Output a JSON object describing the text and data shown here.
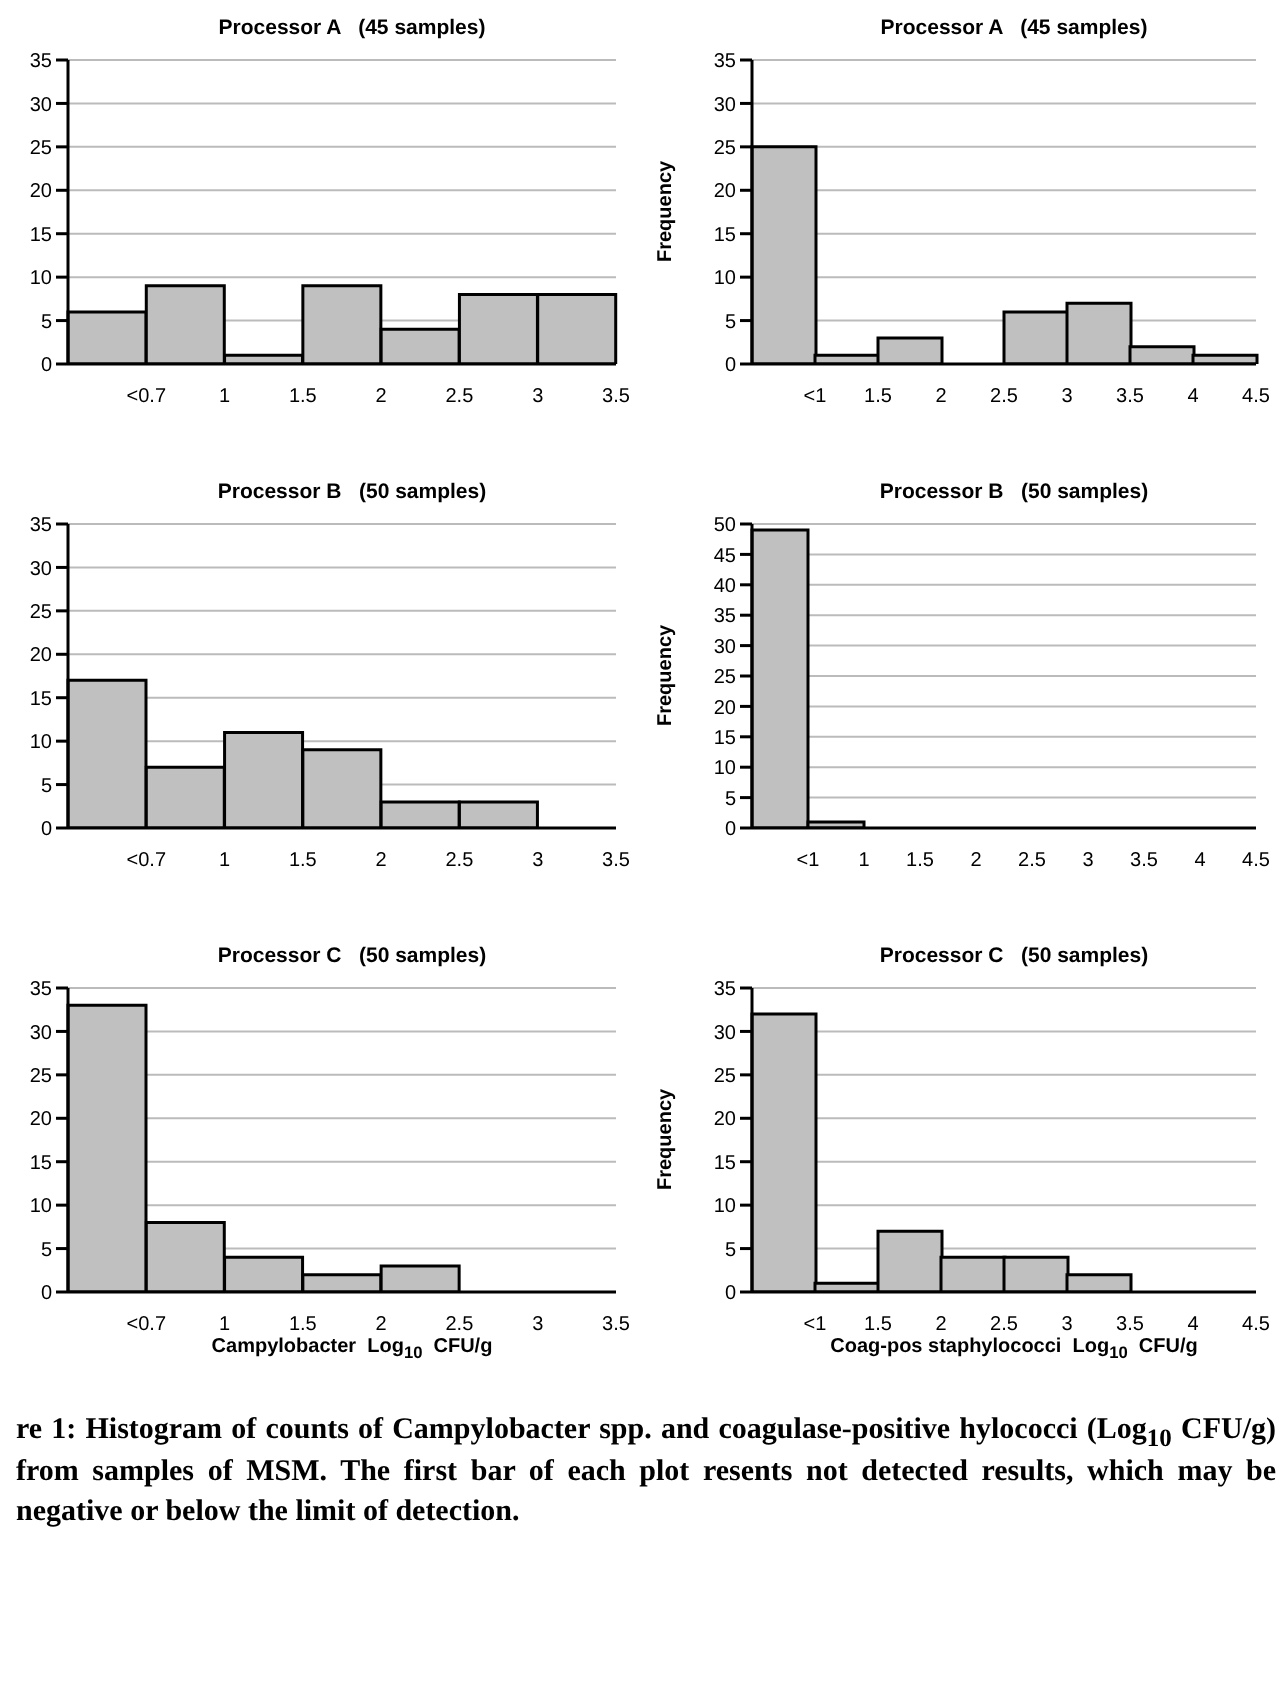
{
  "chart_data": [
    {
      "type": "bar",
      "title": "Processor A   (45 samples)",
      "categories": [
        "<0.7",
        "1",
        "1.5",
        "2",
        "2.5",
        "3",
        "3.5"
      ],
      "values": [
        6,
        9,
        1,
        9,
        4,
        8,
        8
      ],
      "color": "#c0c0c0",
      "ylim": [
        0,
        35
      ],
      "yticks": [
        0,
        5,
        10,
        15,
        20,
        25,
        30,
        35
      ],
      "grid": "y",
      "legend": false
    },
    {
      "type": "bar",
      "title": "Processor A   (45 samples)",
      "ylabel": "Frequency",
      "categories": [
        "<1",
        "1.5",
        "2",
        "2.5",
        "3",
        "3.5",
        "4",
        "4.5"
      ],
      "values": [
        25,
        1,
        3,
        0,
        6,
        7,
        2,
        1
      ],
      "color": "#c0c0c0",
      "ylim": [
        0,
        35
      ],
      "yticks": [
        0,
        5,
        10,
        15,
        20,
        25,
        30,
        35
      ],
      "grid": "y",
      "legend": false
    },
    {
      "type": "bar",
      "title": "Processor B   (50 samples)",
      "categories": [
        "<0.7",
        "1",
        "1.5",
        "2",
        "2.5",
        "3",
        "3.5"
      ],
      "values": [
        17,
        7,
        11,
        9,
        3,
        3,
        0
      ],
      "color": "#c0c0c0",
      "ylim": [
        0,
        35
      ],
      "yticks": [
        0,
        5,
        10,
        15,
        20,
        25,
        30,
        35
      ],
      "grid": "y",
      "legend": false
    },
    {
      "type": "bar",
      "title": "Processor B   (50 samples)",
      "ylabel": "Frequency",
      "categories": [
        "<1",
        "1",
        "1.5",
        "2",
        "2.5",
        "3",
        "3.5",
        "4",
        "4.5"
      ],
      "values": [
        49,
        1,
        0,
        0,
        0,
        0,
        0,
        0,
        0
      ],
      "color": "#c0c0c0",
      "ylim": [
        0,
        50
      ],
      "yticks": [
        0,
        5,
        10,
        15,
        20,
        25,
        30,
        35,
        40,
        45,
        50
      ],
      "grid": "y",
      "legend": false
    },
    {
      "type": "bar",
      "title": "Processor C   (50 samples)",
      "xlabel": "Campylobacter  Log$_{10}$  CFU/g",
      "categories": [
        "<0.7",
        "1",
        "1.5",
        "2",
        "2.5",
        "3",
        "3.5"
      ],
      "values": [
        33,
        8,
        4,
        2,
        3,
        0,
        0
      ],
      "color": "#c0c0c0",
      "ylim": [
        0,
        35
      ],
      "yticks": [
        0,
        5,
        10,
        15,
        20,
        25,
        30,
        35
      ],
      "grid": "y",
      "legend": false
    },
    {
      "type": "bar",
      "title": "Processor C   (50 samples)",
      "ylabel": "Frequency",
      "xlabel": "Coag-pos staphylococci  Log$_{10}$  CFU/g",
      "categories": [
        "<1",
        "1.5",
        "2",
        "2.5",
        "3",
        "3.5",
        "4",
        "4.5"
      ],
      "values": [
        32,
        1,
        7,
        4,
        4,
        2,
        0,
        0
      ],
      "color": "#c0c0c0",
      "ylim": [
        0,
        35
      ],
      "yticks": [
        0,
        5,
        10,
        15,
        20,
        25,
        30,
        35
      ],
      "grid": "y",
      "legend": false,
      "annotations": [
        "re 1:  Histogram of counts of Campylobacter spp. and coagulase-positive hylococci (Log$_{10}$ CFU/g) from samples of MSM.  The first bar of each plot resents not detected results, which may be negative or below the limit of detection."
      ]
    }
  ]
}
